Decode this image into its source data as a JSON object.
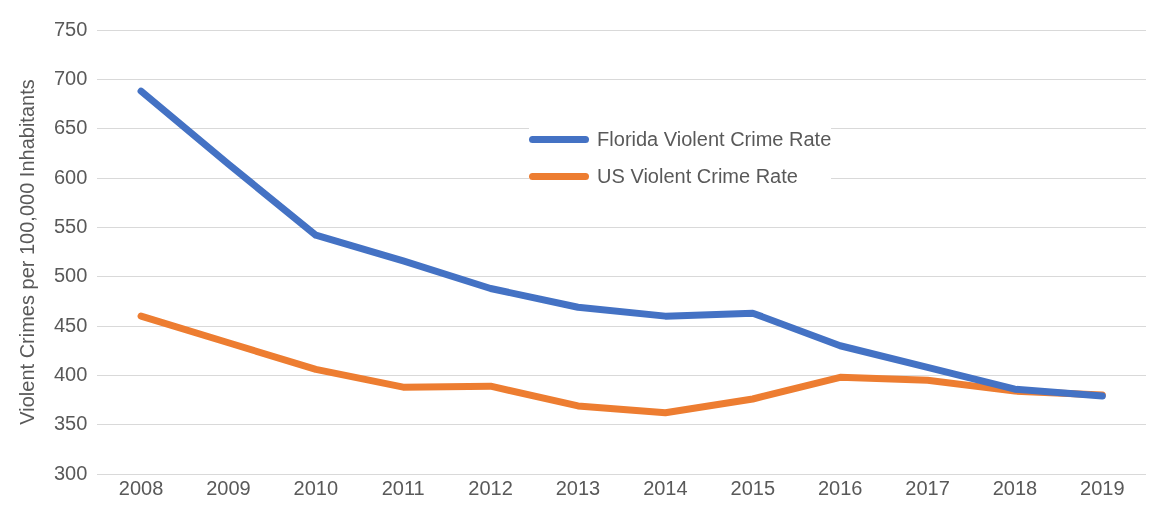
{
  "chart_data": {
    "type": "line",
    "ylabel": "Violent Crimes per 100,000 Inhabitants",
    "categories": [
      "2008",
      "2009",
      "2010",
      "2011",
      "2012",
      "2013",
      "2014",
      "2015",
      "2016",
      "2017",
      "2018",
      "2019"
    ],
    "series": [
      {
        "name": "Florida Violent Crime Rate",
        "color": "#4472c4",
        "values": [
          688,
          614,
          542,
          516,
          488,
          469,
          460,
          463,
          430,
          408,
          386,
          379
        ]
      },
      {
        "name": "US Violent Crime Rate",
        "color": "#ed7d31",
        "values": [
          460,
          433,
          406,
          388,
          389,
          369,
          362,
          376,
          398,
          395,
          384,
          380
        ]
      }
    ],
    "ylim": [
      300,
      750
    ],
    "yticks": [
      300,
      350,
      400,
      450,
      500,
      550,
      600,
      650,
      700,
      750
    ],
    "grid": "y",
    "legend": "top",
    "marker": "none",
    "line_style": "solid"
  }
}
